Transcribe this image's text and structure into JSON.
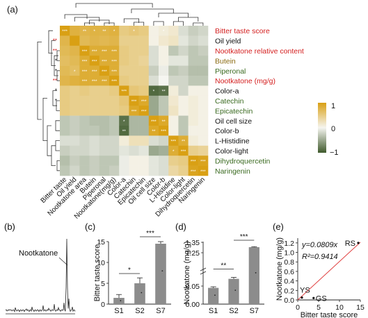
{
  "colors": {
    "high": "#d9a014",
    "mid": "#f5f5f0",
    "low": "#3f5a2c",
    "red_label": "#d42020",
    "brown_label": "#8a6a10",
    "green_label": "#3a6a20",
    "black_label": "#111111",
    "bar": "#8c8c8c",
    "fit_line": "#e04040"
  },
  "chart_data": [
    {
      "panel": "(a)",
      "type": "heatmap",
      "rows": [
        {
          "label": "Bitter taste score",
          "color": "red"
        },
        {
          "label": "Oil yield",
          "color": "black"
        },
        {
          "label": "Nootkatone relative content",
          "color": "red"
        },
        {
          "label": "Butein",
          "color": "brown"
        },
        {
          "label": "Piperonal",
          "color": "green"
        },
        {
          "label": "Nootkatone (mg/g)",
          "color": "red"
        },
        {
          "label": "Color-a",
          "color": "black"
        },
        {
          "label": "Catechin",
          "color": "green"
        },
        {
          "label": "Epicatechin",
          "color": "green"
        },
        {
          "label": "Oil cell size",
          "color": "black"
        },
        {
          "label": "Color-b",
          "color": "black"
        },
        {
          "label": "L-Histidine",
          "color": "black"
        },
        {
          "label": "Color-light",
          "color": "black"
        },
        {
          "label": "Dihydroquercetin",
          "color": "green"
        },
        {
          "label": "Naringenin",
          "color": "green"
        }
      ],
      "columns": [
        "Bitter taste",
        "Oil yield",
        "Nootkatone area",
        "Butein",
        "Piperonal",
        "Nootkatone(mg/g)",
        "Color-a",
        "Catechin",
        "Epicatechin",
        "Oil cell size",
        "Color-b",
        "L-Histidine",
        "Color-light",
        "Dihydroquercetin",
        "Naringenin"
      ],
      "values": [
        [
          1,
          0.8,
          0.75,
          0.78,
          0.77,
          0.8,
          0.5,
          0.55,
          0.5,
          0.05,
          0.1,
          0.15,
          -0.15,
          -0.25,
          -0.2
        ],
        [
          0.75,
          1,
          0.7,
          0.75,
          0.72,
          0.75,
          0.45,
          0.45,
          0.45,
          0.05,
          0.15,
          0.2,
          -0.1,
          -0.2,
          -0.15
        ],
        [
          0.7,
          0.75,
          1,
          0.85,
          0.85,
          0.85,
          0.5,
          0.45,
          0.45,
          -0.15,
          0.05,
          -0.3,
          -0.2,
          -0.3,
          -0.25
        ],
        [
          0.65,
          0.7,
          0.85,
          1,
          0.85,
          0.85,
          0.5,
          0.45,
          0.4,
          -0.15,
          0.05,
          -0.1,
          -0.1,
          -0.3,
          -0.3
        ],
        [
          0.7,
          0.65,
          0.85,
          0.85,
          1,
          0.85,
          0.45,
          0.45,
          0.45,
          -0.25,
          -0.05,
          -0.3,
          -0.25,
          -0.35,
          -0.35
        ],
        [
          0.75,
          0.8,
          0.85,
          0.85,
          0.85,
          1,
          0.5,
          0.45,
          0.45,
          -0.15,
          0.0,
          -0.2,
          -0.2,
          -0.3,
          -0.3
        ],
        [
          0.5,
          0.45,
          0.5,
          0.45,
          0.45,
          0.5,
          1,
          0.55,
          0.5,
          -0.9,
          -0.85,
          0.1,
          -0.2,
          0.05,
          0.05
        ],
        [
          0.5,
          0.45,
          0.45,
          0.45,
          0.45,
          0.45,
          0.55,
          1,
          0.9,
          -0.5,
          -0.3,
          0.15,
          0.05,
          0.1,
          0.05
        ],
        [
          0.5,
          0.45,
          0.45,
          0.45,
          0.45,
          0.45,
          0.5,
          0.9,
          1,
          -0.5,
          -0.3,
          0.2,
          0.05,
          0.1,
          0.05
        ],
        [
          -0.3,
          -0.25,
          -0.3,
          -0.35,
          -0.35,
          -0.3,
          -0.85,
          -0.4,
          -0.4,
          1,
          0.9,
          0.05,
          -0.3,
          0.1,
          0.05
        ],
        [
          -0.3,
          -0.25,
          -0.3,
          -0.3,
          -0.35,
          -0.3,
          -0.9,
          -0.4,
          -0.4,
          0.9,
          1,
          0.05,
          -0.3,
          0.05,
          0.05
        ],
        [
          -0.15,
          -0.15,
          -0.2,
          -0.15,
          -0.2,
          -0.2,
          0.1,
          0.25,
          0.25,
          -0.15,
          -0.2,
          1,
          0.85,
          0.1,
          0.05
        ],
        [
          -0.25,
          -0.2,
          -0.2,
          -0.15,
          -0.2,
          -0.2,
          -0.1,
          -0.15,
          -0.1,
          -0.5,
          -0.45,
          0.85,
          1,
          0.45,
          0.4
        ],
        [
          -0.35,
          -0.25,
          -0.3,
          -0.25,
          -0.3,
          -0.3,
          -0.05,
          0.05,
          0.05,
          -0.1,
          -0.15,
          0.45,
          0.5,
          1,
          0.95
        ],
        [
          -0.3,
          -0.2,
          -0.3,
          -0.25,
          -0.3,
          -0.25,
          -0.05,
          0.05,
          0.05,
          -0.1,
          -0.15,
          0.35,
          0.45,
          0.95,
          1
        ]
      ],
      "stars": [
        [
          "***",
          "",
          "**",
          "*",
          "**",
          "*",
          "",
          "*",
          "",
          "",
          "*",
          "",
          "",
          "",
          ""
        ],
        [
          "",
          "",
          "",
          "",
          "",
          "",
          "",
          "",
          "",
          "",
          "",
          "",
          "",
          "",
          ""
        ],
        [
          "",
          "",
          "***",
          "***",
          "***",
          "***",
          "",
          "",
          "",
          "",
          "",
          "",
          "",
          "",
          ""
        ],
        [
          "",
          "",
          "***",
          "***",
          "***",
          "***",
          "",
          "",
          "",
          "",
          "",
          "",
          "",
          "",
          ""
        ],
        [
          "",
          "*",
          "***",
          "***",
          "***",
          "***",
          "",
          "",
          "",
          "",
          "",
          "",
          "",
          "",
          ""
        ],
        [
          "",
          "",
          "***",
          "***",
          "***",
          "***",
          "",
          "",
          "",
          "",
          "",
          "",
          "",
          "",
          ""
        ],
        [
          "",
          "",
          "",
          "",
          "",
          "",
          "***",
          "",
          "",
          "*",
          "**",
          "",
          "",
          "",
          ""
        ],
        [
          "",
          "",
          "",
          "",
          "",
          "",
          "",
          "***",
          "***",
          "",
          "",
          "",
          "",
          "",
          ""
        ],
        [
          "",
          "",
          "",
          "",
          "",
          "",
          "",
          "***",
          "***",
          "",
          "",
          "",
          "",
          "",
          ""
        ],
        [
          "",
          "",
          "",
          "",
          "",
          "",
          "*",
          "",
          "",
          "***",
          "**",
          "",
          "",
          "",
          ""
        ],
        [
          "",
          "",
          "",
          "",
          "",
          "",
          "**",
          "",
          "",
          "**",
          "***",
          "",
          "",
          "",
          ""
        ],
        [
          "",
          "",
          "",
          "",
          "",
          "",
          "",
          "",
          "",
          "",
          "",
          "***",
          "**",
          "",
          ""
        ],
        [
          "",
          "",
          "",
          "",
          "",
          "",
          "",
          "",
          "",
          "",
          "",
          "*",
          "***",
          "",
          ""
        ],
        [
          "",
          "",
          "",
          "",
          "",
          "",
          "",
          "",
          "",
          "",
          "",
          "",
          "",
          "***",
          "***"
        ],
        [
          "",
          "",
          "",
          "",
          "",
          "",
          "",
          "",
          "",
          "",
          "",
          "",
          "",
          "***",
          "***"
        ]
      ],
      "left_markers": [
        {
          "row": 1,
          "text": "**",
          "color": "red"
        },
        {
          "row": 2,
          "text": "**",
          "color": "red"
        },
        {
          "row": 3,
          "text": "*",
          "color": "black"
        },
        {
          "row": 4,
          "text": "*",
          "color": "black"
        },
        {
          "row": 5,
          "text": "**",
          "color": "red"
        },
        {
          "row": 6,
          "text": "*",
          "color": "black"
        },
        {
          "row": 7,
          "text": "*",
          "color": "black"
        }
      ],
      "colorbar": {
        "ticks": [
          "1",
          "0",
          "−1"
        ],
        "range": [
          -1,
          1
        ]
      }
    },
    {
      "panel": "(b)",
      "type": "line",
      "annotation": "Nootkatone"
    },
    {
      "panel": "(c)",
      "type": "bar",
      "categories": [
        "S1",
        "S2",
        "S7"
      ],
      "values": [
        1.5,
        5.0,
        14.5
      ],
      "errors": [
        0.8,
        1.3,
        0.5
      ],
      "ylabel": "Bitter taste score",
      "ylim": [
        0,
        15
      ],
      "yticks": [
        0,
        5,
        10,
        15
      ],
      "brackets": [
        {
          "from": 0,
          "to": 1,
          "text": "*"
        },
        {
          "from": 1,
          "to": 2,
          "text": "***"
        }
      ]
    },
    {
      "panel": "(d)",
      "type": "bar",
      "categories": [
        "S1",
        "S2",
        "S7"
      ],
      "values": [
        0.045,
        0.07,
        1.1
      ],
      "errors": [
        0.003,
        0.004,
        0.03
      ],
      "ylabel": "Nootkatone (mg/g)",
      "yticks": [
        "0.00",
        "0.05",
        "1.25",
        "1.35"
      ],
      "axis_break": true,
      "brackets": [
        {
          "from": 0,
          "to": 1,
          "text": "**"
        },
        {
          "from": 1,
          "to": 2,
          "text": "***"
        }
      ]
    },
    {
      "panel": "(e)",
      "type": "scatter",
      "xlabel": "Bitter taste score",
      "ylabel": "Nootkatone (mg/g)",
      "xlim": [
        0,
        15
      ],
      "ylim": [
        0,
        1.3
      ],
      "xticks": [
        0,
        5,
        10,
        15
      ],
      "yticks": [
        "0.0",
        "0.2",
        "0.4",
        "0.6",
        "0.8",
        "1.0",
        "1.2"
      ],
      "points": [
        {
          "label": "YS",
          "x": 1.0,
          "y": 0.05
        },
        {
          "label": "GS",
          "x": 3.8,
          "y": 0.04
        },
        {
          "label": "RS",
          "x": 14.5,
          "y": 1.2
        }
      ],
      "equation": "y=0.0809x",
      "r_squared": "R²=0.9414",
      "fit_slope": 0.0809
    }
  ]
}
